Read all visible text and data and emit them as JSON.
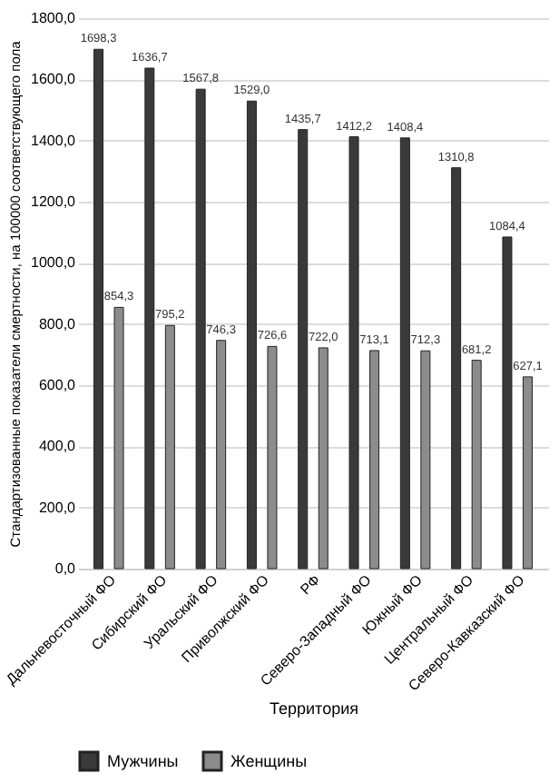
{
  "chart_data": {
    "type": "bar",
    "xlabel": "Территория",
    "ylabel": "Стандартизованные показатели смертности, на 100000 соответствующего пола",
    "categories": [
      "Дальневосточный ФО",
      "Сибирский ФО",
      "Уральский ФО",
      "Приволжский ФО",
      "РФ",
      "Северо-Западный ФО",
      "Южный ФО",
      "Центральный ФО",
      "Северо-Кавказский ФО"
    ],
    "series": [
      {
        "name": "Мужчины",
        "color": "#3a3a3a",
        "values": [
          1698.3,
          1636.7,
          1567.8,
          1529.0,
          1435.7,
          1412.2,
          1408.4,
          1310.8,
          1084.4
        ],
        "value_labels": [
          "1698,3",
          "1636,7",
          "1567,8",
          "1529,0",
          "1435,7",
          "1412,2",
          "1408,4",
          "1310,8",
          "1084,4"
        ]
      },
      {
        "name": "Женщины",
        "color": "#8c8c8c",
        "values": [
          854.3,
          795.2,
          746.3,
          726.6,
          722.0,
          713.1,
          712.3,
          681.2,
          627.1
        ],
        "value_labels": [
          "854,3",
          "795,2",
          "746,3",
          "726,6",
          "722,0",
          "713,1",
          "712,3",
          "681,2",
          "627,1"
        ]
      }
    ],
    "ylim": [
      0,
      1800
    ],
    "yticks": [
      {
        "value": 0,
        "label": "0,0"
      },
      {
        "value": 200,
        "label": "200,0"
      },
      {
        "value": 400,
        "label": "400,0"
      },
      {
        "value": 600,
        "label": "600,0"
      },
      {
        "value": 800,
        "label": "800,0"
      },
      {
        "value": 1000,
        "label": "1000,0"
      },
      {
        "value": 1200,
        "label": "1200,0"
      },
      {
        "value": 1400,
        "label": "1400,0"
      },
      {
        "value": 1600,
        "label": "1600,0"
      },
      {
        "value": 1800,
        "label": "1800,0"
      }
    ],
    "grid": "y",
    "legend": "bottom"
  }
}
